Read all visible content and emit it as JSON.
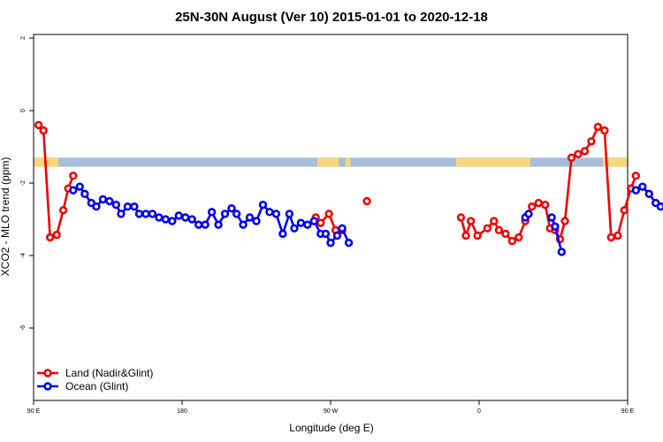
{
  "chart_data": {
    "type": "line",
    "title": "25N-30N August (Ver 10)   2015-01-01 to 2020-12-18",
    "xlabel": "Longitude (deg E)",
    "ylabel": "XCO2 - MLO trend (ppm)",
    "xlim": [
      90,
      450
    ],
    "ylim": [
      -8,
      2.1
    ],
    "x_ticks": [
      {
        "value": 90,
        "label": "90 E"
      },
      {
        "value": 180,
        "label": "180"
      },
      {
        "value": 270,
        "label": "90 W"
      },
      {
        "value": 360,
        "label": "0"
      },
      {
        "value": 450,
        "label": "90 E"
      },
      {
        "value": 540,
        "label": "180"
      }
    ],
    "y_ticks": [
      {
        "value": 2,
        "label": "2"
      },
      {
        "value": 0,
        "label": "0"
      },
      {
        "value": -2,
        "label": "-2"
      },
      {
        "value": -4,
        "label": "-4"
      },
      {
        "value": -6,
        "label": "-6"
      }
    ],
    "grid": false,
    "legend_position": "bottom-left",
    "land_ocean_band": {
      "y_range": [
        -1.55,
        -1.3
      ],
      "land_color": "#f7d77a",
      "ocean_color": "#a7bddc",
      "land_ranges": [
        [
          90,
          105
        ],
        [
          262,
          275
        ],
        [
          279,
          282
        ],
        [
          346,
          391
        ],
        [
          435,
          480
        ]
      ]
    },
    "series": [
      {
        "name": "Land (Nadir&Glint)",
        "color": "#ee0000",
        "segments": [
          [
            [
              93,
              -0.4
            ],
            [
              96,
              -0.55
            ],
            [
              100,
              -3.5
            ],
            [
              104,
              -3.43
            ],
            [
              108,
              -2.75
            ],
            [
              111,
              -2.15
            ],
            [
              114,
              -1.8
            ]
          ],
          [
            [
              261,
              -2.95
            ],
            [
              264,
              -3.1
            ],
            [
              269,
              -2.85
            ],
            [
              273,
              -3.3
            ],
            [
              277,
              -3.3
            ]
          ],
          [
            [
              292,
              -2.5
            ]
          ],
          [
            [
              349,
              -2.95
            ],
            [
              352,
              -3.45
            ],
            [
              355,
              -3.05
            ],
            [
              359,
              -3.45
            ],
            [
              365,
              -3.25
            ],
            [
              369,
              -3.05
            ],
            [
              372,
              -3.3
            ],
            [
              376,
              -3.4
            ],
            [
              380,
              -3.6
            ],
            [
              384,
              -3.5
            ],
            [
              388,
              -3.05
            ],
            [
              392,
              -2.65
            ],
            [
              396,
              -2.55
            ],
            [
              400,
              -2.6
            ],
            [
              403,
              -3.25
            ],
            [
              406,
              -3.3
            ],
            [
              409,
              -3.55
            ],
            [
              412,
              -3.05
            ],
            [
              416,
              -1.3
            ],
            [
              420,
              -1.2
            ],
            [
              424,
              -1.12
            ],
            [
              428,
              -0.85
            ],
            [
              432,
              -0.45
            ],
            [
              436,
              -0.55
            ],
            [
              440,
              -3.5
            ],
            [
              444,
              -3.45
            ],
            [
              448,
              -2.75
            ],
            [
              452,
              -2.15
            ],
            [
              455,
              -1.8
            ]
          ]
        ]
      },
      {
        "name": "Ocean (Glint)",
        "color": "#0000ee",
        "segments": [
          [
            [
              114,
              -2.2
            ],
            [
              118,
              -2.1
            ],
            [
              121,
              -2.3
            ],
            [
              125,
              -2.55
            ],
            [
              128,
              -2.65
            ],
            [
              132,
              -2.45
            ],
            [
              136,
              -2.5
            ],
            [
              140,
              -2.6
            ],
            [
              143,
              -2.85
            ],
            [
              147,
              -2.65
            ],
            [
              151,
              -2.65
            ],
            [
              154,
              -2.85
            ],
            [
              158,
              -2.85
            ],
            [
              162,
              -2.85
            ],
            [
              166,
              -2.95
            ],
            [
              170,
              -3.0
            ],
            [
              174,
              -3.05
            ],
            [
              178,
              -2.9
            ],
            [
              182,
              -2.95
            ],
            [
              186,
              -3.0
            ],
            [
              190,
              -3.15
            ],
            [
              194,
              -3.15
            ],
            [
              198,
              -2.8
            ],
            [
              202,
              -3.15
            ],
            [
              206,
              -2.85
            ],
            [
              210,
              -2.7
            ],
            [
              213,
              -2.85
            ],
            [
              217,
              -3.15
            ],
            [
              221,
              -2.95
            ],
            [
              225,
              -3.05
            ],
            [
              229,
              -2.6
            ],
            [
              233,
              -2.8
            ],
            [
              237,
              -2.85
            ],
            [
              241,
              -3.4
            ],
            [
              245,
              -2.85
            ],
            [
              248,
              -3.25
            ],
            [
              252,
              -3.1
            ],
            [
              256,
              -3.15
            ],
            [
              260,
              -3.05
            ],
            [
              264,
              -3.4
            ],
            [
              267,
              -3.4
            ],
            [
              270,
              -3.65
            ],
            [
              274,
              -3.45
            ],
            [
              277,
              -3.25
            ],
            [
              281,
              -3.65
            ]
          ],
          [
            [
              388,
              -2.95
            ],
            [
              390,
              -2.85
            ]
          ],
          [
            [
              404,
              -2.95
            ],
            [
              406,
              -3.2
            ],
            [
              410,
              -3.9
            ]
          ],
          [
            [
              455,
              -2.2
            ],
            [
              459,
              -2.1
            ],
            [
              463,
              -2.3
            ],
            [
              467,
              -2.55
            ],
            [
              470,
              -2.65
            ],
            [
              474,
              -2.45
            ],
            [
              478,
              -2.5
            ],
            [
              482,
              -2.6
            ],
            [
              485,
              -2.85
            ],
            [
              489,
              -2.65
            ],
            [
              493,
              -2.65
            ],
            [
              497,
              -2.85
            ]
          ]
        ]
      }
    ]
  }
}
